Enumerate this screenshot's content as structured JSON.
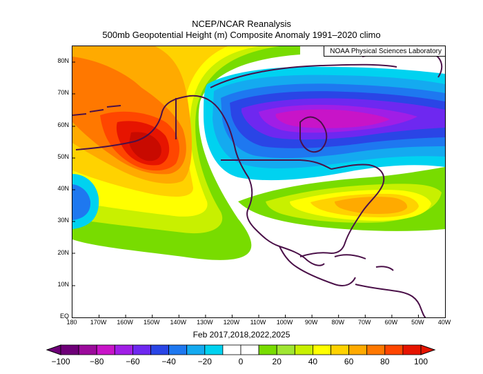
{
  "title": "NCEP/NCAR Reanalysis",
  "subtitle": "500mb Geopotential Height (m) Composite Anomaly 1991–2020 climo",
  "credit": "NOAA Physical Sciences Laboratory",
  "period": "Feb 2017,2018,2022,2025",
  "lat_labels": [
    "80N",
    "70N",
    "60N",
    "50N",
    "40N",
    "30N",
    "20N",
    "10N",
    "EQ"
  ],
  "lon_labels": [
    "180",
    "170W",
    "160W",
    "150W",
    "140W",
    "130W",
    "120W",
    "110W",
    "100W",
    "90W",
    "80W",
    "70W",
    "60W",
    "50W",
    "40W"
  ],
  "colorbar": {
    "labels": [
      "−100",
      "−80",
      "−60",
      "−40",
      "−20",
      "0",
      "20",
      "40",
      "60",
      "80",
      "100"
    ],
    "colors": [
      "#6e0078",
      "#9b0a9b",
      "#c814c8",
      "#a01ee6",
      "#6e28f0",
      "#2a45e6",
      "#1e78f0",
      "#14aaf0",
      "#00d2f0",
      "#ffffff",
      "#ffffff",
      "#78dc00",
      "#a0e632",
      "#c8f000",
      "#ffff00",
      "#ffd200",
      "#ffaa00",
      "#ff7800",
      "#ff4600",
      "#e61400"
    ]
  },
  "chart_data": {
    "type": "heatmap",
    "title": "NCEP/NCAR Reanalysis",
    "subtitle": "500mb Geopotential Height (m) Composite Anomaly 1991–2020 climo",
    "units": "m",
    "xlim": [
      -180,
      -40
    ],
    "ylim": [
      0,
      85
    ],
    "color_range": [
      -100,
      100
    ],
    "color_interval": 10,
    "features": [
      {
        "name": "positive anomaly maximum",
        "lon": -152,
        "lat": 51,
        "value": 100
      },
      {
        "name": "negative anomaly minimum",
        "lon": -100,
        "lat": 61,
        "value": -90
      },
      {
        "name": "positive anomaly",
        "lon": -70,
        "lat": 36,
        "value": 60
      },
      {
        "name": "negative anomaly",
        "lon": -180,
        "lat": 35,
        "value": -30
      }
    ]
  }
}
